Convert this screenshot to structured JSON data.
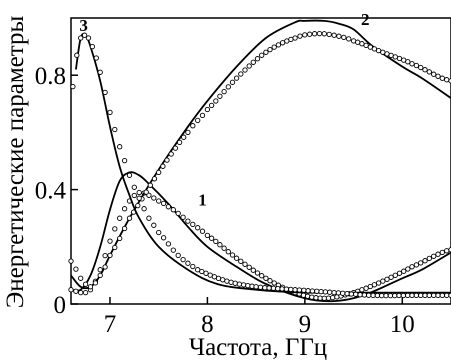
{
  "chart_data": {
    "type": "line",
    "title": "",
    "xlabel": "Частота, ГГц",
    "ylabel": "Энергетические параметры",
    "xlim": [
      6.6,
      10.5
    ],
    "ylim": [
      0,
      1.0
    ],
    "x_ticks": [
      {
        "value": 7,
        "label": "7"
      },
      {
        "value": 8,
        "label": "8"
      },
      {
        "value": 9,
        "label": "9"
      },
      {
        "value": 10,
        "label": "10"
      }
    ],
    "y_ticks": [
      {
        "value": 0,
        "label": "0"
      },
      {
        "value": 0.4,
        "label": "0.4"
      },
      {
        "value": 0.8,
        "label": "0.8"
      }
    ],
    "grid": false,
    "legend": "none",
    "annotations": [
      {
        "text": "1",
        "x": 7.95,
        "y": 0.345
      },
      {
        "text": "2",
        "x": 9.62,
        "y": 0.975
      },
      {
        "text": "3",
        "x": 6.73,
        "y": 0.955
      }
    ],
    "series": [
      {
        "style": "line",
        "x": [
          6.6,
          6.7,
          6.8,
          6.9,
          7.0,
          7.1,
          7.2,
          7.3,
          7.4,
          7.6,
          7.8,
          8.0,
          8.3,
          8.6,
          9.0,
          9.3,
          9.6,
          10.0,
          10.2,
          10.5
        ],
        "y": [
          0.05,
          0.05,
          0.1,
          0.2,
          0.33,
          0.43,
          0.46,
          0.45,
          0.42,
          0.35,
          0.27,
          0.2,
          0.13,
          0.07,
          0.02,
          0.01,
          0.03,
          0.09,
          0.12,
          0.18
        ]
      },
      {
        "style": "markers",
        "x": [
          6.6,
          6.7,
          6.8,
          6.9,
          7.0,
          7.1,
          7.2,
          7.3,
          7.4,
          7.5,
          7.6,
          7.8,
          8.0,
          8.3,
          8.6,
          8.9,
          9.2,
          9.5,
          9.8,
          10.1,
          10.5
        ],
        "y": [
          0.05,
          0.04,
          0.05,
          0.12,
          0.22,
          0.3,
          0.36,
          0.39,
          0.38,
          0.36,
          0.34,
          0.29,
          0.24,
          0.16,
          0.09,
          0.04,
          0.02,
          0.04,
          0.08,
          0.13,
          0.19
        ]
      },
      {
        "style": "line",
        "x": [
          6.6,
          6.7,
          6.8,
          6.9,
          7.0,
          7.2,
          7.5,
          7.8,
          8.0,
          8.3,
          8.6,
          8.9,
          9.0,
          9.2,
          9.35,
          9.5,
          9.7,
          10.0,
          10.2,
          10.5
        ],
        "y": [
          0.1,
          0.06,
          0.06,
          0.1,
          0.17,
          0.3,
          0.47,
          0.62,
          0.71,
          0.83,
          0.93,
          0.985,
          0.99,
          0.99,
          0.98,
          0.96,
          0.9,
          0.83,
          0.79,
          0.72
        ]
      },
      {
        "style": "markers",
        "x": [
          6.6,
          6.7,
          6.8,
          6.9,
          7.0,
          7.2,
          7.5,
          7.8,
          8.0,
          8.3,
          8.6,
          8.9,
          9.1,
          9.3,
          9.5,
          9.8,
          10.1,
          10.5
        ],
        "y": [
          0.15,
          0.09,
          0.06,
          0.1,
          0.17,
          0.3,
          0.46,
          0.6,
          0.68,
          0.79,
          0.88,
          0.93,
          0.945,
          0.94,
          0.92,
          0.88,
          0.84,
          0.78
        ]
      },
      {
        "style": "line",
        "x": [
          6.65,
          6.7,
          6.75,
          6.8,
          6.9,
          7.0,
          7.1,
          7.2,
          7.3,
          7.5,
          7.8,
          8.1,
          8.5,
          9.0,
          9.5,
          10.0,
          10.5
        ],
        "y": [
          0.82,
          0.93,
          0.94,
          0.9,
          0.78,
          0.62,
          0.48,
          0.38,
          0.3,
          0.2,
          0.12,
          0.07,
          0.05,
          0.04,
          0.04,
          0.04,
          0.04
        ]
      },
      {
        "style": "markers",
        "x": [
          6.62,
          6.66,
          6.7,
          6.74,
          6.78,
          6.82,
          6.86,
          6.9,
          6.95,
          7.0,
          7.05,
          7.1,
          7.2,
          7.3,
          7.4,
          7.5,
          7.7,
          7.9,
          8.2,
          8.5,
          8.9,
          9.3,
          9.7,
          10.1,
          10.5
        ],
        "y": [
          0.76,
          0.87,
          0.93,
          0.94,
          0.93,
          0.9,
          0.86,
          0.81,
          0.74,
          0.67,
          0.61,
          0.55,
          0.45,
          0.37,
          0.3,
          0.25,
          0.17,
          0.12,
          0.08,
          0.06,
          0.05,
          0.04,
          0.03,
          0.03,
          0.03
        ]
      }
    ]
  }
}
